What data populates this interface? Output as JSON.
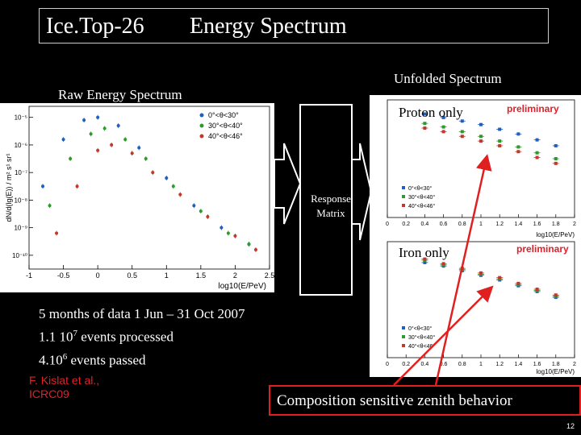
{
  "slide": {
    "title_left": "Ice.Top-26",
    "title_right": "Energy Spectrum",
    "raw_label": "Raw Energy Spectrum",
    "unfolded_label": "Unfolded Spectrum",
    "response_matrix_label_1": "Response",
    "response_matrix_label_2": "Matrix",
    "proton_label": "Proton only",
    "iron_label": "Iron only",
    "preliminary": "preliminary",
    "facts": {
      "line1": "5 months of data   1 Jun – 31 Oct 2007",
      "line2_pre": "1.1 10",
      "line2_sup": "7",
      "line2_post": " events processed",
      "line3_pre": "4.10",
      "line3_sup": "6",
      "line3_post": " events passed"
    },
    "citation_1": "F. Kislat et al.,",
    "citation_2": "ICRC09",
    "composition_text": "Composition sensitive zenith behavior",
    "page_number": "12",
    "accent_red": "#e02020",
    "series_colors": [
      "#1f5fbf",
      "#2e9a2e",
      "#c0392b"
    ]
  },
  "chart_data": [
    {
      "type": "scatter",
      "title": "",
      "xlabel": "log10(E/PeV)",
      "ylabel": "dN/d(lg(E)) / m² s¹ sr¹",
      "xlim": [
        -1,
        2.5
      ],
      "x_ticks": [
        "-1",
        "-0.5",
        "0",
        "0.5",
        "1",
        "1.5",
        "2",
        "2.5"
      ],
      "y_ticks": [
        "10⁻⁵",
        "10⁻⁶",
        "10⁻⁷",
        "10⁻⁸",
        "10⁻⁹",
        "10⁻¹⁰"
      ],
      "legend": [
        "0°<θ<30°",
        "30°<θ<40°",
        "40°<θ<46°"
      ],
      "legend_position": "top-right",
      "series": [
        {
          "name": "0°<θ<30°",
          "x": [
            -0.8,
            -0.5,
            -0.2,
            0,
            0.3,
            0.6,
            1.0,
            1.4,
            1.8,
            2.2
          ],
          "y": [
            -7.5,
            -5.8,
            -5.1,
            -5.0,
            -5.3,
            -6.1,
            -7.2,
            -8.2,
            -9.0,
            -9.6
          ]
        },
        {
          "name": "30°<θ<40°",
          "x": [
            -0.7,
            -0.4,
            -0.1,
            0.1,
            0.4,
            0.7,
            1.1,
            1.5,
            1.9,
            2.2
          ],
          "y": [
            -8.2,
            -6.5,
            -5.6,
            -5.4,
            -5.8,
            -6.5,
            -7.5,
            -8.4,
            -9.2,
            -9.6
          ]
        },
        {
          "name": "40°<θ<46°",
          "x": [
            -0.6,
            -0.3,
            0,
            0.2,
            0.5,
            0.8,
            1.2,
            1.6,
            2.0,
            2.3
          ],
          "y": [
            -9.2,
            -7.5,
            -6.2,
            -6.0,
            -6.3,
            -7.0,
            -7.8,
            -8.6,
            -9.3,
            -9.8
          ]
        }
      ]
    },
    {
      "type": "scatter",
      "title": "Proton only",
      "xlabel": "log10(E/PeV)",
      "x_ticks": [
        "0",
        "0.2",
        "0.4",
        "0.6",
        "0.8",
        "1",
        "1.2",
        "1.4",
        "1.6",
        "1.8",
        "2"
      ],
      "legend": [
        "0°<θ<30°",
        "30°<θ<40°",
        "40°<θ<46°"
      ],
      "series": [
        {
          "name": "0°<θ<30°",
          "x": [
            0.4,
            0.6,
            0.8,
            1.0,
            1.2,
            1.4,
            1.6,
            1.8
          ],
          "y": [
            0.88,
            0.85,
            0.82,
            0.79,
            0.75,
            0.71,
            0.66,
            0.61
          ]
        },
        {
          "name": "30°<θ<40°",
          "x": [
            0.4,
            0.6,
            0.8,
            1.0,
            1.2,
            1.4,
            1.6,
            1.8
          ],
          "y": [
            0.8,
            0.77,
            0.73,
            0.69,
            0.65,
            0.6,
            0.55,
            0.5
          ]
        },
        {
          "name": "40°<θ<46°",
          "x": [
            0.4,
            0.6,
            0.8,
            1.0,
            1.2,
            1.4,
            1.6,
            1.8
          ],
          "y": [
            0.76,
            0.73,
            0.69,
            0.65,
            0.61,
            0.56,
            0.51,
            0.46
          ]
        }
      ]
    },
    {
      "type": "scatter",
      "title": "Iron only",
      "xlabel": "log10(E/PeV)",
      "x_ticks": [
        "0",
        "0.2",
        "0.4",
        "0.6",
        "0.8",
        "1",
        "1.2",
        "1.4",
        "1.6",
        "1.8",
        "2"
      ],
      "legend": [
        "0°<θ<30°",
        "30°<θ<40°",
        "40°<θ<46°"
      ],
      "series": [
        {
          "name": "0°<θ<30°",
          "x": [
            0.4,
            0.6,
            0.8,
            1.0,
            1.2,
            1.4,
            1.6,
            1.8
          ],
          "y": [
            0.82,
            0.79,
            0.75,
            0.71,
            0.67,
            0.62,
            0.57,
            0.52
          ]
        },
        {
          "name": "30°<θ<40°",
          "x": [
            0.4,
            0.6,
            0.8,
            1.0,
            1.2,
            1.4,
            1.6,
            1.8
          ],
          "y": [
            0.84,
            0.8,
            0.76,
            0.72,
            0.68,
            0.63,
            0.58,
            0.53
          ]
        },
        {
          "name": "40°<θ<46°",
          "x": [
            0.4,
            0.6,
            0.8,
            1.0,
            1.2,
            1.4,
            1.6,
            1.8
          ],
          "y": [
            0.85,
            0.81,
            0.77,
            0.73,
            0.69,
            0.64,
            0.59,
            0.54
          ]
        }
      ]
    }
  ]
}
